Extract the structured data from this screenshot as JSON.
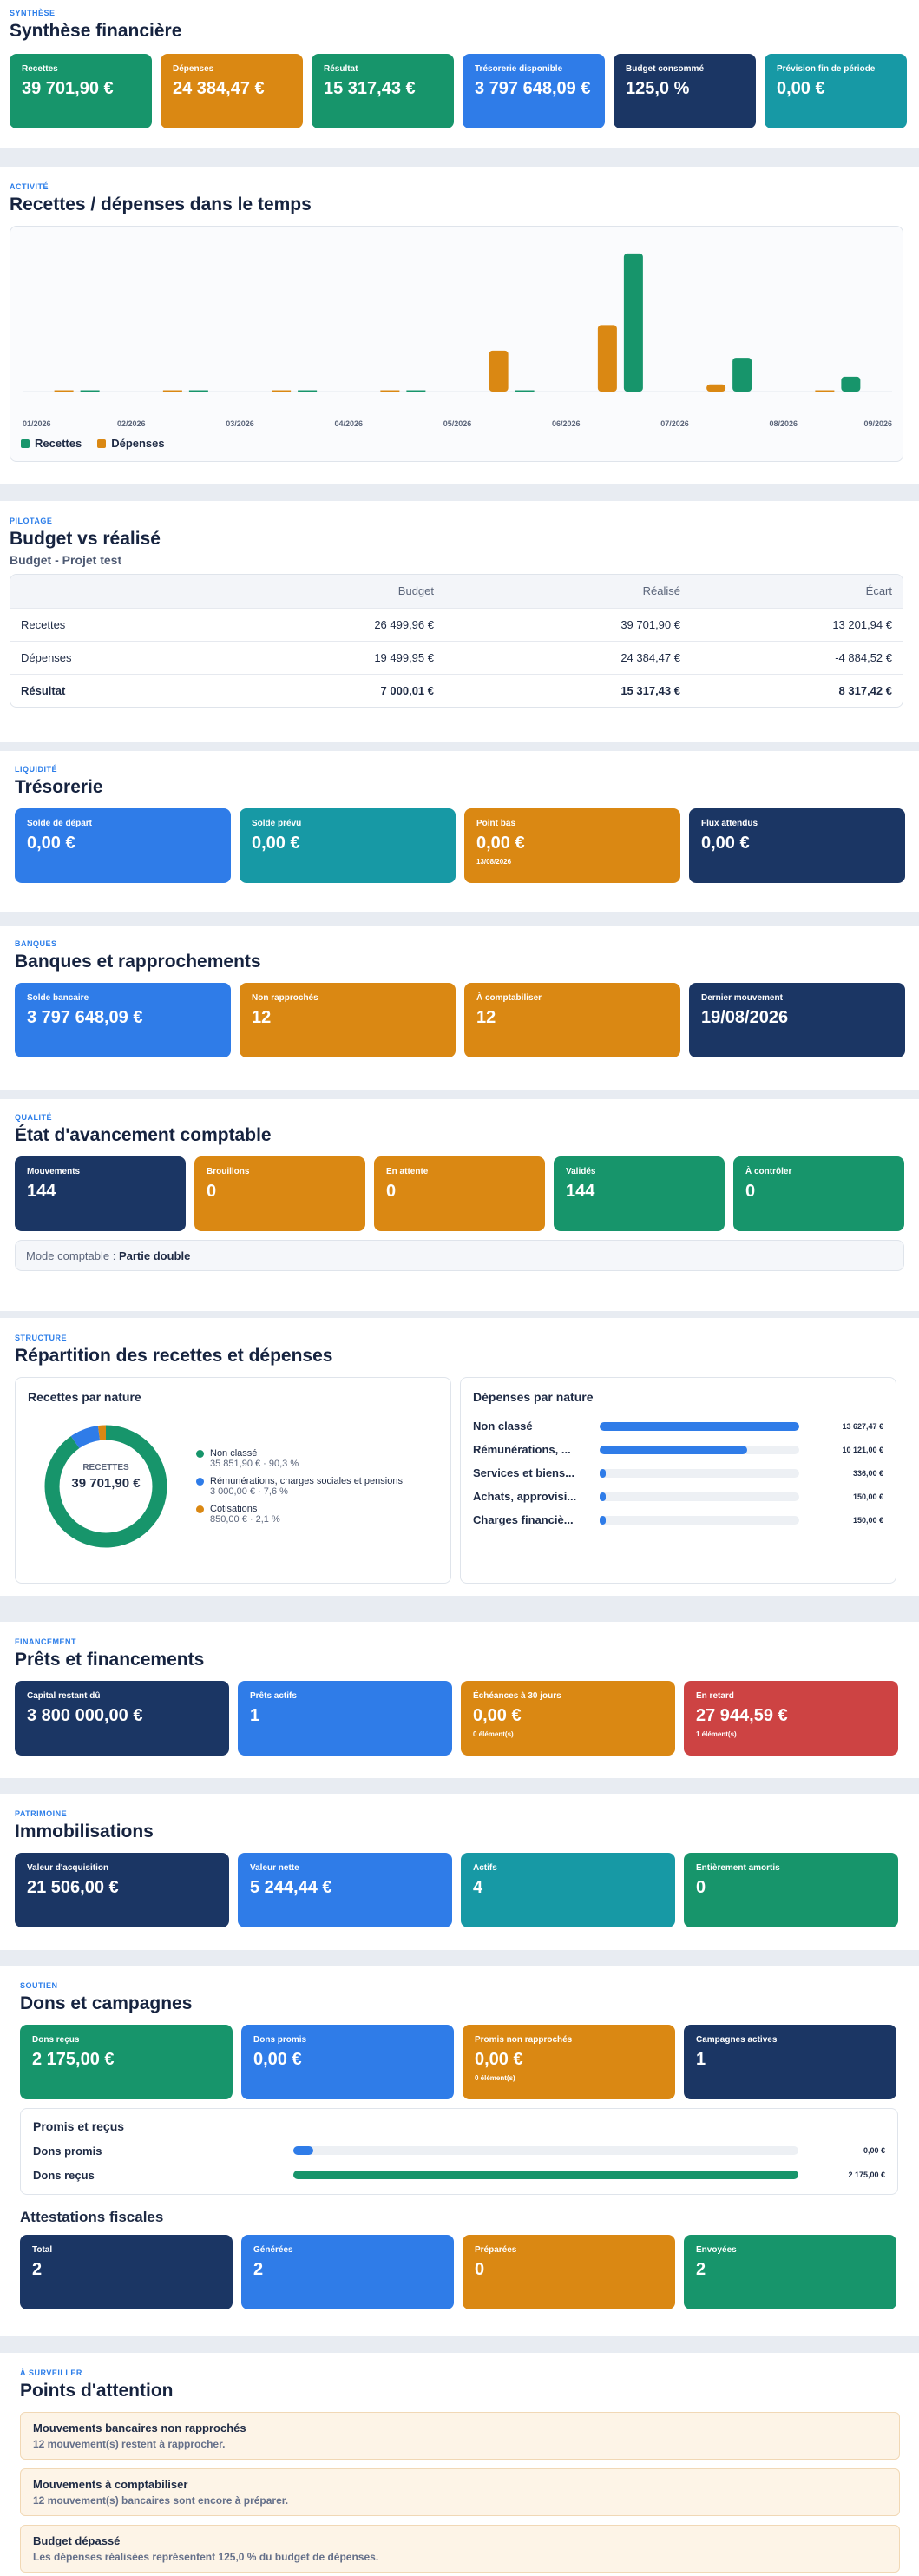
{
  "synthese": {
    "eyebrow": "SYNTHÈSE",
    "title": "Synthèse financière",
    "cards": [
      {
        "label": "Recettes",
        "value": "39 701,90 €",
        "color": "green"
      },
      {
        "label": "Dépenses",
        "value": "24 384,47 €",
        "color": "orange"
      },
      {
        "label": "Résultat",
        "value": "15 317,43 €",
        "color": "green"
      },
      {
        "label": "Trésorerie disponible",
        "value": "3 797 648,09 €",
        "color": "blue"
      },
      {
        "label": "Budget consommé",
        "value": "125,0 %",
        "color": "navy"
      },
      {
        "label": "Prévision fin de période",
        "value": "0,00 €",
        "color": "teal"
      }
    ]
  },
  "activite": {
    "eyebrow": "ACTIVITÉ",
    "title": "Recettes / dépenses dans le temps",
    "legend": {
      "recettes": "Recettes",
      "depenses": "Dépenses"
    },
    "colors": {
      "recettes": "#17956b",
      "depenses": "#da8813"
    }
  },
  "chart_data": {
    "type": "bar",
    "categories": [
      "01/2026",
      "02/2026",
      "03/2026",
      "04/2026",
      "05/2026",
      "06/2026",
      "07/2026",
      "08/2026",
      "09/2026"
    ],
    "x_tick_labels": [
      "01/2026",
      "02/2026",
      "03/2026",
      "04/2026",
      "05/2026",
      "06/2026",
      "07/2026",
      "08/2026",
      "09/2026"
    ],
    "series": [
      {
        "name": "Recettes",
        "values": [
          0,
          0,
          0,
          0,
          0,
          27000,
          6600,
          2900,
          0
        ]
      },
      {
        "name": "Dépenses",
        "values": [
          0,
          0,
          0,
          0,
          8000,
          13000,
          1400,
          0,
          0
        ]
      }
    ],
    "ylim": [
      0,
      28000
    ],
    "grid": false,
    "legend_position": "bottom-left"
  },
  "budget": {
    "eyebrow": "PILOTAGE",
    "title": "Budget vs réalisé",
    "subtitle": "Budget - Projet test",
    "headers": [
      "",
      "Budget",
      "Réalisé",
      "Écart"
    ],
    "rows": [
      [
        "Recettes",
        "26 499,96 €",
        "39 701,90 €",
        "13 201,94 €"
      ],
      [
        "Dépenses",
        "19 499,95 €",
        "24 384,47 €",
        "-4 884,52 €"
      ],
      [
        "Résultat",
        "7 000,01 €",
        "15 317,43 €",
        "8 317,42 €"
      ]
    ]
  },
  "tresorerie": {
    "eyebrow": "LIQUIDITÉ",
    "title": "Trésorerie",
    "cards": [
      {
        "label": "Solde de départ",
        "value": "0,00 €",
        "color": "blue"
      },
      {
        "label": "Solde prévu",
        "value": "0,00 €",
        "color": "teal"
      },
      {
        "label": "Point bas",
        "value": "0,00 €",
        "sub": "13/08/2026",
        "color": "orange"
      },
      {
        "label": "Flux attendus",
        "value": "0,00 €",
        "color": "navy"
      }
    ]
  },
  "banques": {
    "eyebrow": "BANQUES",
    "title": "Banques et rapprochements",
    "cards": [
      {
        "label": "Solde bancaire",
        "value": "3 797 648,09 €",
        "color": "blue"
      },
      {
        "label": "Non rapprochés",
        "value": "12",
        "color": "orange"
      },
      {
        "label": "À comptabiliser",
        "value": "12",
        "color": "orange"
      },
      {
        "label": "Dernier mouvement",
        "value": "19/08/2026",
        "color": "navy"
      }
    ]
  },
  "qualite": {
    "eyebrow": "QUALITÉ",
    "title": "État d'avancement comptable",
    "cards": [
      {
        "label": "Mouvements",
        "value": "144",
        "color": "navy"
      },
      {
        "label": "Brouillons",
        "value": "0",
        "color": "orange"
      },
      {
        "label": "En attente",
        "value": "0",
        "color": "orange"
      },
      {
        "label": "Validés",
        "value": "144",
        "color": "green"
      },
      {
        "label": "À contrôler",
        "value": "0",
        "color": "green"
      }
    ],
    "mode_label": "Mode comptable :",
    "mode_value": "Partie double"
  },
  "repartition": {
    "eyebrow": "STRUCTURE",
    "title": "Répartition des recettes et dépenses",
    "recettes": {
      "title": "Recettes par nature",
      "center_label": "RECETTES",
      "center_value": "39 701,90 €",
      "items": [
        {
          "label": "Non classé",
          "detail": "35 851,90 € · 90,3 %",
          "pct": 90.3,
          "color": "#17956b"
        },
        {
          "label": "Rémunérations, charges sociales et pensions",
          "detail": "3 000,00 € · 7,6 %",
          "pct": 7.6,
          "color": "#2f7ce8"
        },
        {
          "label": "Cotisations",
          "detail": "850,00 € · 2,1 %",
          "pct": 2.1,
          "color": "#da8813"
        }
      ]
    },
    "depenses": {
      "title": "Dépenses par nature",
      "items": [
        {
          "label": "Non classé",
          "value": "13 627,47 €",
          "fraction": 1.0
        },
        {
          "label": "Rémunérations, ...",
          "value": "10 121,00 €",
          "fraction": 0.74
        },
        {
          "label": "Services et biens...",
          "value": "336,00 €",
          "fraction": 0.025
        },
        {
          "label": "Achats, approvisi...",
          "value": "150,00 €",
          "fraction": 0.011
        },
        {
          "label": "Charges financiè...",
          "value": "150,00 €",
          "fraction": 0.011
        }
      ]
    }
  },
  "prets": {
    "eyebrow": "FINANCEMENT",
    "title": "Prêts et financements",
    "cards": [
      {
        "label": "Capital restant dû",
        "value": "3 800 000,00 €",
        "color": "navy"
      },
      {
        "label": "Prêts actifs",
        "value": "1",
        "color": "blue"
      },
      {
        "label": "Échéances à 30 jours",
        "value": "0,00 €",
        "sub": "0 élément(s)",
        "color": "orange"
      },
      {
        "label": "En retard",
        "value": "27 944,59 €",
        "sub": "1 élément(s)",
        "color": "red"
      }
    ]
  },
  "immobilisations": {
    "eyebrow": "PATRIMOINE",
    "title": "Immobilisations",
    "cards": [
      {
        "label": "Valeur d'acquisition",
        "value": "21 506,00 €",
        "color": "navy"
      },
      {
        "label": "Valeur nette",
        "value": "5 244,44 €",
        "color": "blue"
      },
      {
        "label": "Actifs",
        "value": "4",
        "color": "teal"
      },
      {
        "label": "Entièrement amortis",
        "value": "0",
        "color": "green"
      }
    ]
  },
  "dons": {
    "eyebrow": "SOUTIEN",
    "title": "Dons et campagnes",
    "cards": [
      {
        "label": "Dons reçus",
        "value": "2 175,00 €",
        "color": "green"
      },
      {
        "label": "Dons promis",
        "value": "0,00 €",
        "color": "blue"
      },
      {
        "label": "Promis non rapprochés",
        "value": "0,00 €",
        "sub": "0 élément(s)",
        "color": "orange"
      },
      {
        "label": "Campagnes actives",
        "value": "1",
        "color": "navy"
      }
    ],
    "promis_title": "Promis et reçus",
    "bars": [
      {
        "label": "Dons promis",
        "value": "0,00 €",
        "fraction": 0.0,
        "color": "#2f7ce8"
      },
      {
        "label": "Dons reçus",
        "value": "2 175,00 €",
        "fraction": 1.0,
        "color": "#17956b"
      }
    ],
    "attestations_title": "Attestations fiscales",
    "attestations": [
      {
        "label": "Total",
        "value": "2",
        "color": "navy"
      },
      {
        "label": "Générées",
        "value": "2",
        "color": "blue"
      },
      {
        "label": "Préparées",
        "value": "0",
        "color": "orange"
      },
      {
        "label": "Envoyées",
        "value": "2",
        "color": "green"
      }
    ]
  },
  "attention": {
    "eyebrow": "À SURVEILLER",
    "title": "Points d'attention",
    "items": [
      {
        "title": "Mouvements bancaires non rapprochés",
        "desc": "12 mouvement(s) restent à rapprocher."
      },
      {
        "title": "Mouvements à comptabiliser",
        "desc": "12 mouvement(s) bancaires sont encore à préparer."
      },
      {
        "title": "Budget dépassé",
        "desc": "Les dépenses réalisées représentent 125,0 % du budget de dépenses."
      }
    ]
  }
}
